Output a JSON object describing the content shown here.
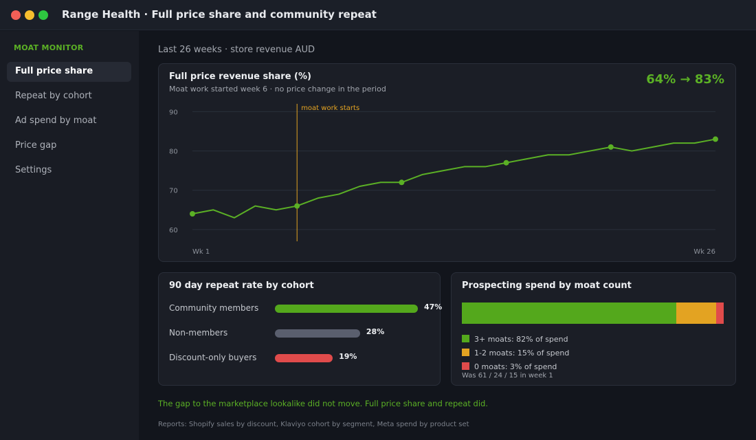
{
  "window": {
    "title": "Range Health  ·  Full price share and community repeat",
    "controls": {
      "close_color": "#f25f57",
      "minimize_color": "#f7bd2e",
      "zoom_color": "#2ec740"
    }
  },
  "sidebar": {
    "heading": "MOAT MONITOR",
    "items": [
      {
        "label": "Full price share",
        "active": true
      },
      {
        "label": "Repeat by cohort",
        "active": false
      },
      {
        "label": "Ad spend by moat",
        "active": false
      },
      {
        "label": "Price gap",
        "active": false
      },
      {
        "label": "Settings",
        "active": false
      }
    ]
  },
  "main": {
    "subtitle": "Last 26 weeks · store revenue AUD",
    "takeaway": "The gap to the marketplace lookalike did not move. Full price share and repeat did.",
    "footer": "Reports: Shopify sales by discount, Klaviyo cohort by segment, Meta spend by product set"
  },
  "full_price_card": {
    "title": "Full price revenue share (%)",
    "subtitle": "Moat work started week 6 · no price change in the period",
    "metric": "64% → 83%"
  },
  "repeat_card": {
    "title": "90 day repeat rate by cohort",
    "cohorts": [
      {
        "label": "Community members",
        "value": 47,
        "display": "47%",
        "color": "#54a81c"
      },
      {
        "label": "Non-members",
        "value": 28,
        "display": "28%",
        "color": "#5a5f6e"
      },
      {
        "label": "Discount-only buyers",
        "value": 19,
        "display": "19%",
        "color": "#e04b4b"
      }
    ]
  },
  "spend_card": {
    "title": "Prospecting spend by moat count",
    "segments": [
      {
        "label": "3+ moats: 82% of spend",
        "value": 82,
        "color": "#54a81c"
      },
      {
        "label": "1-2 moats: 15% of spend",
        "value": 15,
        "color": "#e3a322"
      },
      {
        "label": "0 moats: 3% of spend",
        "value": 3,
        "color": "#e04b4b"
      }
    ],
    "note": "Was 61 / 24 / 15 in week 1"
  },
  "chart_data": {
    "type": "line",
    "title": "Full price revenue share (%)",
    "x": [
      1,
      2,
      3,
      4,
      5,
      6,
      7,
      8,
      9,
      10,
      11,
      12,
      13,
      14,
      15,
      16,
      17,
      18,
      19,
      20,
      21,
      22,
      23,
      24,
      25,
      26
    ],
    "x_tick_labels": [
      "Wk 1",
      "Wk 26"
    ],
    "values": [
      64,
      65,
      63,
      66,
      65,
      66,
      68,
      69,
      71,
      72,
      72,
      74,
      75,
      76,
      76,
      77,
      78,
      79,
      79,
      80,
      81,
      80,
      81,
      82,
      82,
      83
    ],
    "marker_weeks": [
      1,
      6,
      11,
      16,
      21,
      26
    ],
    "ylim": [
      57,
      92
    ],
    "yticks": [
      60,
      70,
      80,
      90
    ],
    "grid": true,
    "line_color": "#5bb025",
    "annotation": {
      "week": 6,
      "label": "moat work starts",
      "color": "#e3a322"
    }
  }
}
